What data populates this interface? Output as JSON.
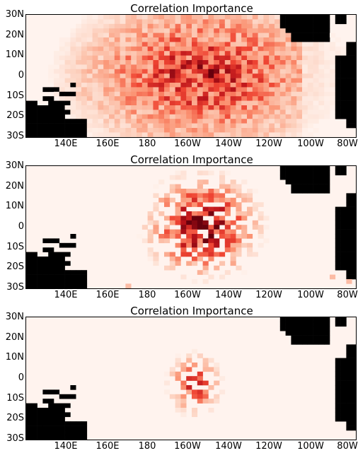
{
  "chart_data": [
    {
      "type": "heatmap",
      "title": "Correlation Importance",
      "x_ticks": [
        "140E",
        "160E",
        "180",
        "160W",
        "140W",
        "120W",
        "100W",
        "80W"
      ],
      "y_ticks": [
        "30N",
        "20N",
        "10N",
        "0",
        "10S",
        "20S",
        "30S"
      ],
      "xlim": [
        "120E",
        "75W"
      ],
      "ylim": [
        "31S",
        "31N"
      ],
      "colormap": "white-to-dark-red",
      "land_color": "#000000",
      "importance_pattern": "dense, widespread high importance centered near 160W–140W, 10N–10S"
    },
    {
      "type": "heatmap",
      "title": "Correlation Importance",
      "x_ticks": [
        "140E",
        "160E",
        "180",
        "160W",
        "140W",
        "120W",
        "100W",
        "80W"
      ],
      "y_ticks": [
        "30N",
        "20N",
        "10N",
        "0",
        "10S",
        "20S",
        "30S"
      ],
      "xlim": [
        "120E",
        "75W"
      ],
      "ylim": [
        "31S",
        "31N"
      ],
      "colormap": "white-to-dark-red",
      "land_color": "#000000",
      "importance_pattern": "moderate importance concentrated between 180 and 130W"
    },
    {
      "type": "heatmap",
      "title": "Correlation Importance",
      "x_ticks": [
        "140E",
        "160E",
        "180",
        "160W",
        "140W",
        "120W",
        "100W",
        "80W"
      ],
      "y_ticks": [
        "30N",
        "20N",
        "10N",
        "0",
        "10S",
        "20S",
        "30S"
      ],
      "xlim": [
        "120E",
        "75W"
      ],
      "ylim": [
        "31S",
        "31N"
      ],
      "colormap": "white-to-dark-red",
      "land_color": "#000000",
      "importance_pattern": "sparse weak importance near 160W–150W, 10N–15S"
    }
  ]
}
